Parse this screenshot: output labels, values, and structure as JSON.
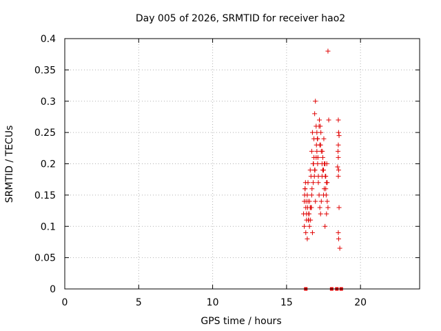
{
  "chart_data": {
    "type": "scatter",
    "title": "Day 005 of 2026, SRMTID for receiver hao2",
    "xlabel": "GPS time / hours",
    "ylabel": "SRMTID / TECUs",
    "xlim": [
      0,
      24
    ],
    "ylim": [
      0,
      0.4
    ],
    "x_ticks": [
      0,
      5,
      10,
      15,
      20
    ],
    "x_tick_labels": [
      "0",
      "5",
      "10",
      "15",
      "20"
    ],
    "y_ticks": [
      0,
      0.05,
      0.1,
      0.15,
      0.2,
      0.25,
      0.3,
      0.35,
      0.4
    ],
    "y_tick_labels": [
      "0",
      "0.05",
      "0.1",
      "0.15",
      "0.2",
      "0.25",
      "0.3",
      "0.35",
      "0.4"
    ],
    "grid": true,
    "legend": "none",
    "marker": "+",
    "color": "#e00000",
    "series": [
      {
        "x": [
          16.15,
          16.2,
          16.25,
          16.3,
          16.35,
          16.4,
          16.45,
          16.5,
          16.55,
          16.6,
          16.65,
          16.7,
          16.75,
          16.8,
          16.85,
          16.9,
          16.95,
          17.0,
          17.05,
          17.1,
          17.15,
          17.2,
          17.25,
          17.3,
          17.35,
          17.4,
          17.45,
          17.5,
          17.55,
          17.6,
          17.65,
          17.7,
          17.75,
          17.8,
          17.85,
          16.2,
          16.3,
          16.4,
          16.5,
          16.6,
          16.7,
          16.8,
          16.9,
          17.0,
          17.1,
          17.2,
          17.3,
          17.4,
          17.5,
          17.6,
          17.7,
          16.25,
          16.45,
          16.65,
          16.85,
          17.05,
          17.25,
          17.45,
          17.65,
          16.35,
          16.55,
          16.75,
          16.95,
          17.15,
          17.35,
          17.55,
          17.75,
          16.22,
          16.42,
          16.62,
          16.82,
          17.02,
          17.22,
          17.42,
          17.62,
          16.32,
          16.52,
          16.72,
          16.92,
          17.12,
          17.32,
          17.52,
          17.72,
          16.28,
          16.48,
          16.68,
          16.88,
          17.08,
          17.28,
          17.48,
          17.68,
          17.8,
          18.5,
          18.52,
          18.55,
          18.5,
          18.48,
          18.52,
          18.5,
          18.55,
          18.5,
          18.52,
          18.6,
          18.5,
          18.45
        ],
        "y": [
          0.12,
          0.14,
          0.16,
          0.13,
          0.11,
          0.15,
          0.17,
          0.12,
          0.14,
          0.19,
          0.18,
          0.22,
          0.25,
          0.2,
          0.24,
          0.28,
          0.3,
          0.26,
          0.22,
          0.2,
          0.17,
          0.15,
          0.13,
          0.12,
          0.14,
          0.18,
          0.21,
          0.19,
          0.16,
          0.2,
          0.18,
          0.17,
          0.14,
          0.38,
          0.27,
          0.1,
          0.09,
          0.08,
          0.11,
          0.13,
          0.15,
          0.17,
          0.19,
          0.21,
          0.24,
          0.26,
          0.23,
          0.2,
          0.15,
          0.1,
          0.12,
          0.16,
          0.14,
          0.13,
          0.21,
          0.25,
          0.23,
          0.19,
          0.16,
          0.12,
          0.1,
          0.09,
          0.14,
          0.18,
          0.22,
          0.2,
          0.17,
          0.15,
          0.13,
          0.11,
          0.2,
          0.23,
          0.27,
          0.22,
          0.18,
          0.14,
          0.12,
          0.16,
          0.19,
          0.21,
          0.25,
          0.24,
          0.2,
          0.17,
          0.11,
          0.13,
          0.18,
          0.24,
          0.26,
          0.19,
          0.15,
          0.13,
          0.27,
          0.25,
          0.245,
          0.23,
          0.22,
          0.19,
          0.18,
          0.13,
          0.09,
          0.08,
          0.065,
          0.21,
          0.195
        ],
        "zeros_x": [
          16.3,
          18.05,
          18.4,
          18.7
        ]
      }
    ]
  }
}
